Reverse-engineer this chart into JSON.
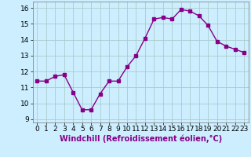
{
  "x": [
    0,
    1,
    2,
    3,
    4,
    5,
    6,
    7,
    8,
    9,
    10,
    11,
    12,
    13,
    14,
    15,
    16,
    17,
    18,
    19,
    20,
    21,
    22,
    23
  ],
  "y": [
    11.4,
    11.4,
    11.7,
    11.8,
    10.7,
    9.6,
    9.6,
    10.6,
    11.4,
    11.4,
    12.3,
    13.0,
    14.1,
    15.3,
    15.4,
    15.3,
    15.9,
    15.8,
    15.5,
    14.9,
    13.9,
    13.6,
    13.4,
    13.2
  ],
  "line_color": "#880088",
  "marker": "s",
  "markersize": 2.5,
  "linewidth": 1.0,
  "bg_color": "#cceeff",
  "grid_color": "#aacccc",
  "xlabel": "Windchill (Refroidissement éolien,°C)",
  "xlabel_fontsize": 7,
  "tick_fontsize": 6.5,
  "ylim": [
    8.8,
    16.4
  ],
  "yticks": [
    9,
    10,
    11,
    12,
    13,
    14,
    15,
    16
  ],
  "xlim": [
    -0.5,
    23.5
  ],
  "xticks": [
    0,
    1,
    2,
    3,
    4,
    5,
    6,
    7,
    8,
    9,
    10,
    11,
    12,
    13,
    14,
    15,
    16,
    17,
    18,
    19,
    20,
    21,
    22,
    23
  ]
}
